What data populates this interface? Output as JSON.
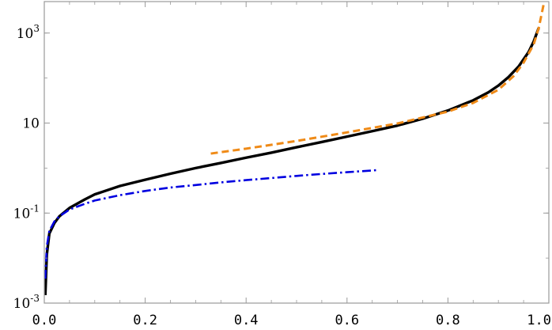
{
  "chart_data": {
    "type": "line",
    "title": "",
    "xlabel": "",
    "ylabel": "",
    "xlim": [
      0,
      1
    ],
    "ylim": [
      0.001,
      5000
    ],
    "y_scale": "log",
    "grid": false,
    "legend": "none",
    "frame_color": "#999999",
    "x_ticks": [
      "0.0",
      "0.2",
      "0.4",
      "0.6",
      "0.8",
      "1.0"
    ],
    "x_tick_values": [
      0,
      0.2,
      0.4,
      0.6,
      0.8,
      1.0
    ],
    "y_ticks": [
      {
        "base": "10",
        "exp": "-3",
        "value": 0.001
      },
      {
        "base": "10",
        "exp": "-1",
        "value": 0.1
      },
      {
        "base": "10",
        "exp": "",
        "value": 10
      },
      {
        "base": "10",
        "exp": "3",
        "value": 1000
      }
    ],
    "series": [
      {
        "style": "solid",
        "color": "#000000",
        "x": [
          0.002,
          0.005,
          0.01,
          0.02,
          0.03,
          0.05,
          0.08,
          0.1,
          0.15,
          0.2,
          0.25,
          0.3,
          0.35,
          0.4,
          0.45,
          0.5,
          0.55,
          0.6,
          0.65,
          0.7,
          0.75,
          0.8,
          0.85,
          0.88,
          0.9,
          0.92,
          0.94,
          0.96,
          0.97,
          0.98
        ],
        "y": [
          0.0015,
          0.012,
          0.035,
          0.06,
          0.085,
          0.13,
          0.2,
          0.26,
          0.4,
          0.55,
          0.75,
          1.0,
          1.3,
          1.7,
          2.2,
          2.9,
          3.8,
          5.0,
          6.6,
          8.8,
          12.5,
          19,
          32,
          48,
          68,
          105,
          180,
          380,
          650,
          1300
        ]
      },
      {
        "style": "dashed",
        "color": "#ef8a17",
        "x": [
          0.33,
          0.4,
          0.5,
          0.6,
          0.7,
          0.8,
          0.85,
          0.9,
          0.93,
          0.95,
          0.97,
          0.98,
          0.99
        ],
        "y": [
          2.1,
          2.7,
          4.0,
          6.2,
          9.8,
          18,
          28,
          55,
          110,
          220,
          560,
          1300,
          4500
        ]
      },
      {
        "style": "dashdot",
        "color": "#0000e0",
        "x": [
          0.002,
          0.005,
          0.01,
          0.02,
          0.03,
          0.05,
          0.08,
          0.1,
          0.15,
          0.2,
          0.25,
          0.3,
          0.35,
          0.4,
          0.45,
          0.5,
          0.55,
          0.6,
          0.66
        ],
        "y": [
          0.0035,
          0.018,
          0.04,
          0.065,
          0.085,
          0.12,
          0.16,
          0.19,
          0.25,
          0.31,
          0.37,
          0.42,
          0.48,
          0.54,
          0.6,
          0.67,
          0.74,
          0.81,
          0.9
        ]
      }
    ]
  }
}
